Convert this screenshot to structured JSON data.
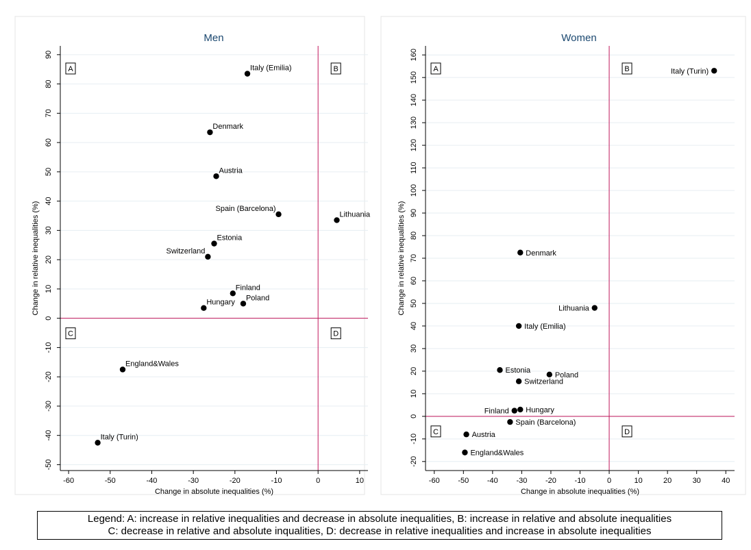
{
  "legend": {
    "line1": "Legend: A: increase in relative inequalities and decrease in absolute inequalities, B: increase in relative and absolute inequalities",
    "line2": "C: decrease in relative and absolute inqualities, D: decrease in relative inequalities and increase in absolute inequalities"
  },
  "colors": {
    "marker": "#000000",
    "reference_line": "#c0155a",
    "title": "#1a476f",
    "grid": "#e6eef2"
  },
  "chart_data": [
    {
      "type": "scatter",
      "title": "Men",
      "xlabel": "Change in absolute inequalities (%)",
      "ylabel": "Change in relative inequalities (%)",
      "xlim": [
        -62,
        12
      ],
      "ylim": [
        -52,
        93
      ],
      "xticks": [
        -60,
        -50,
        -40,
        -30,
        -20,
        -10,
        0,
        10
      ],
      "yticks": [
        -50,
        -40,
        -30,
        -20,
        -10,
        0,
        10,
        20,
        30,
        40,
        50,
        60,
        70,
        80,
        90
      ],
      "grid": true,
      "reference_lines": {
        "x": 0,
        "y": 0
      },
      "quadrant_labels": [
        "A",
        "B",
        "C",
        "D"
      ],
      "points": [
        {
          "label": "Italy (Emilia)",
          "x": -17,
          "y": 83.5,
          "pos": "ne"
        },
        {
          "label": "Denmark",
          "x": -26,
          "y": 63.5,
          "pos": "ne"
        },
        {
          "label": "Austria",
          "x": -24.5,
          "y": 48.5,
          "pos": "ne"
        },
        {
          "label": "Spain (Barcelona)",
          "x": -9.5,
          "y": 35.5,
          "pos": "nw"
        },
        {
          "label": "Lithuania",
          "x": 4.5,
          "y": 33.5,
          "pos": "ne"
        },
        {
          "label": "Estonia",
          "x": -25,
          "y": 25.5,
          "pos": "ne"
        },
        {
          "label": "Switzerland",
          "x": -26.5,
          "y": 21,
          "pos": "nw"
        },
        {
          "label": "Finland",
          "x": -20.5,
          "y": 8.5,
          "pos": "ne"
        },
        {
          "label": "Poland",
          "x": -18,
          "y": 5,
          "pos": "ne"
        },
        {
          "label": "Hungary",
          "x": -27.5,
          "y": 3.5,
          "pos": "ne"
        },
        {
          "label": "England&Wales",
          "x": -47,
          "y": -17.5,
          "pos": "ne"
        },
        {
          "label": "Italy (Turin)",
          "x": -53,
          "y": -42.5,
          "pos": "ne"
        }
      ]
    },
    {
      "type": "scatter",
      "title": "Women",
      "xlabel": "Change in absolute inequalities (%)",
      "ylabel": "Change in relative inequalities (%)",
      "xlim": [
        -63,
        43
      ],
      "ylim": [
        -24,
        164
      ],
      "xticks": [
        -60,
        -50,
        -40,
        -30,
        -20,
        -10,
        0,
        10,
        20,
        30,
        40
      ],
      "yticks": [
        -20,
        -10,
        0,
        10,
        20,
        30,
        40,
        50,
        60,
        70,
        80,
        90,
        100,
        110,
        120,
        130,
        140,
        150,
        160
      ],
      "grid": true,
      "reference_lines": {
        "x": 0,
        "y": 0
      },
      "quadrant_labels": [
        "A",
        "B",
        "C",
        "D"
      ],
      "points": [
        {
          "label": "Italy (Turin)",
          "x": 36,
          "y": 153,
          "pos": "w"
        },
        {
          "label": "Denmark",
          "x": -30.5,
          "y": 72.5,
          "pos": "e"
        },
        {
          "label": "Lithuania",
          "x": -5,
          "y": 48,
          "pos": "w"
        },
        {
          "label": "Italy (Emilia)",
          "x": -31,
          "y": 40,
          "pos": "e"
        },
        {
          "label": "Estonia",
          "x": -37.5,
          "y": 20.5,
          "pos": "e"
        },
        {
          "label": "Poland",
          "x": -20.5,
          "y": 18.5,
          "pos": "e"
        },
        {
          "label": "Switzerland",
          "x": -31,
          "y": 15.5,
          "pos": "e"
        },
        {
          "label": "Finland",
          "x": -32.5,
          "y": 2.5,
          "pos": "w"
        },
        {
          "label": "Hungary",
          "x": -30.5,
          "y": 3,
          "pos": "e"
        },
        {
          "label": "Spain (Barcelona)",
          "x": -34,
          "y": -2.5,
          "pos": "e"
        },
        {
          "label": "Austria",
          "x": -49,
          "y": -8,
          "pos": "e"
        },
        {
          "label": "England&Wales",
          "x": -49.5,
          "y": -16,
          "pos": "e"
        }
      ]
    }
  ]
}
